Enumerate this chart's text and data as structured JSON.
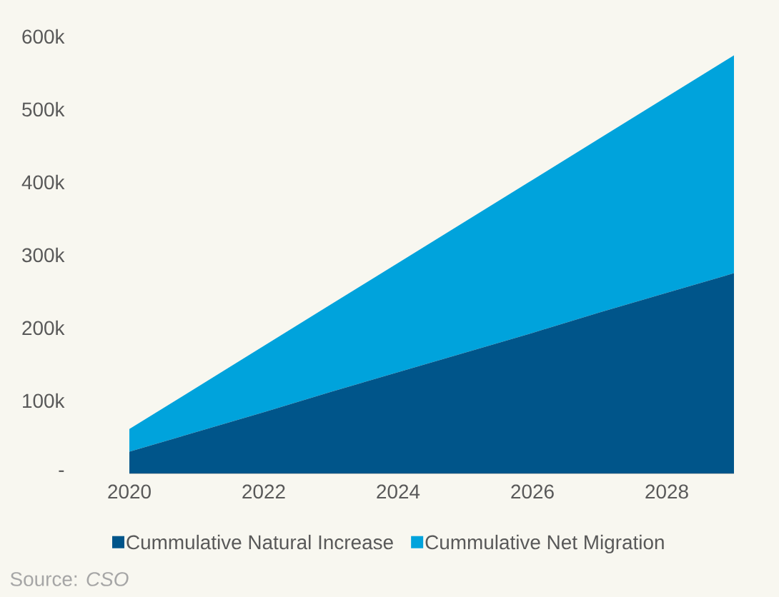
{
  "chart_data": {
    "type": "area",
    "stacked": true,
    "x": [
      2020,
      2021,
      2022,
      2023,
      2024,
      2025,
      2026,
      2027,
      2028,
      2029
    ],
    "series": [
      {
        "name": "Cummulative Natural Increase",
        "color": "#00558a",
        "values": [
          30000,
          57000,
          84000,
          112000,
          139000,
          166000,
          193000,
          221000,
          248000,
          275000
        ]
      },
      {
        "name": "Cummulative Net Migration",
        "color": "#00a3dc",
        "values": [
          31000,
          61000,
          91000,
          120000,
          150000,
          180000,
          210000,
          239000,
          269000,
          299000
        ]
      }
    ],
    "xlim": [
      2020,
      2029
    ],
    "xticks": [
      2020,
      2022,
      2024,
      2026,
      2028
    ],
    "ylim": [
      0,
      600000
    ],
    "yticks": [
      {
        "value": 0,
        "label": "-"
      },
      {
        "value": 100000,
        "label": "100k"
      },
      {
        "value": 200000,
        "label": "200k"
      },
      {
        "value": 300000,
        "label": "300k"
      },
      {
        "value": 400000,
        "label": "400k"
      },
      {
        "value": 500000,
        "label": "500k"
      },
      {
        "value": 600000,
        "label": "600k"
      }
    ],
    "grid": false,
    "legend": "bottom",
    "annotations": [
      "Source: *CSO*"
    ]
  }
}
